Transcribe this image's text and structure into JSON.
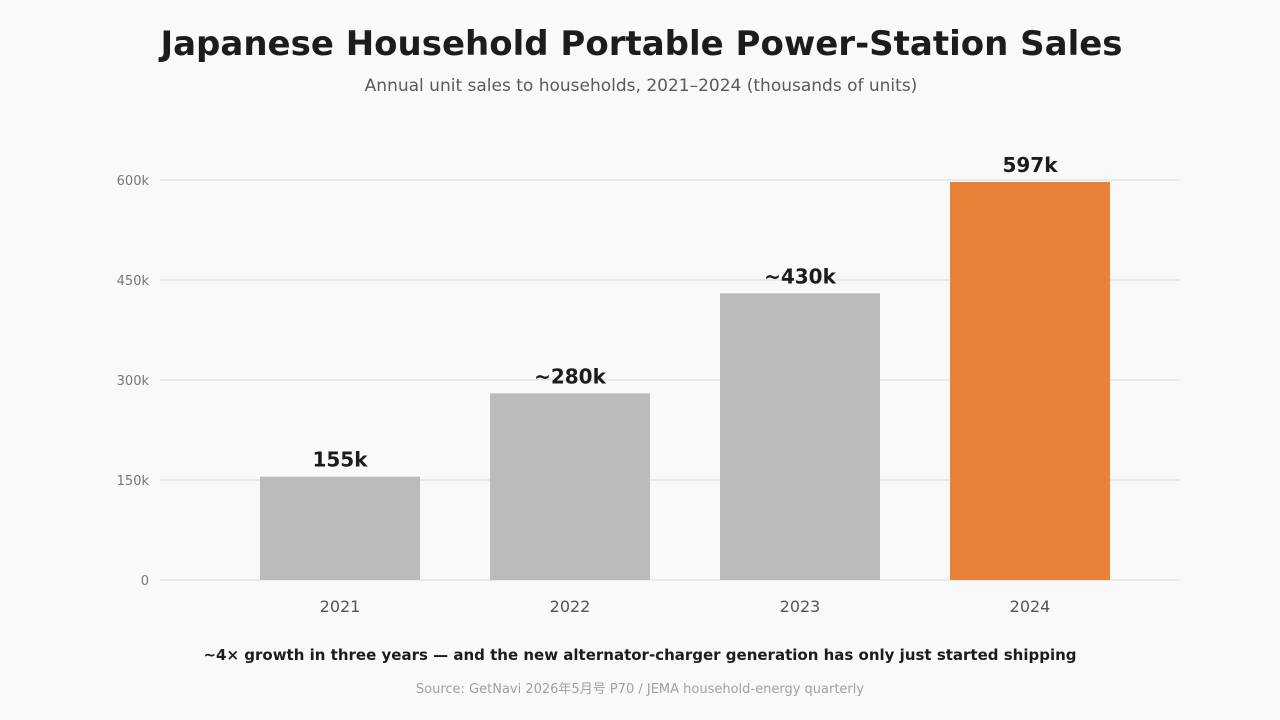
{
  "chart_data": {
    "type": "bar",
    "title": "Japanese Household Portable Power-Station Sales",
    "subtitle": "Annual unit sales to households, 2021–2024 (thousands of units)",
    "categories": [
      "2021",
      "2022",
      "2023",
      "2024"
    ],
    "values": [
      155,
      280,
      430,
      597
    ],
    "value_labels": [
      "155k",
      "~280k",
      "~430k",
      "597k"
    ],
    "ylim": [
      0,
      600
    ],
    "yticks": [
      0,
      150,
      300,
      450,
      600
    ],
    "ytick_labels": [
      "0",
      "150k",
      "300k",
      "450k",
      "600k"
    ],
    "grid": true,
    "colors": {
      "default_bar": "#bbbbbb",
      "highlight_bar": "#e98139",
      "gridline": "#e6e6e6"
    },
    "highlight_index": 3
  },
  "annotation": "~4× growth in three years — and the new alternator-charger generation has only just started shipping",
  "source": "Source: GetNavi 2026年5月号 P70 / JEMA household-energy quarterly"
}
